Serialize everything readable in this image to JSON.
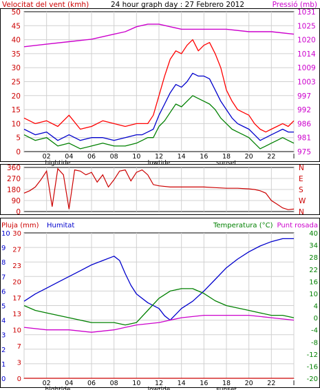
{
  "header": {
    "wind_label": "Velocitat del vent (kmh)",
    "title": "24 hour graph day : 27 Febrero 2012",
    "pressure_label": "Pressió (mb)"
  },
  "lower_header": {
    "rain_label": "Pluja (mm)",
    "humidity_label": "Humitat",
    "temperature_label": "Temperatura (°C)",
    "dewpoint_label": "Punt rosada"
  },
  "colors": {
    "wind_gust": "#ff0000",
    "wind_avg": "#0000cc",
    "wind_min": "#008000",
    "pressure": "#cc00cc",
    "direction": "#cc0000",
    "humidity": "#0000cc",
    "temperature": "#008000",
    "dewpoint": "#cc00cc",
    "rain": "#cc0000",
    "grid": "#d0d0d0",
    "plot_bg": "#ffffff",
    "frame": "#000000"
  },
  "chart_data": [
    {
      "type": "line",
      "panel": "wind-pressure",
      "x_ticks": [
        "02",
        "04",
        "06",
        "08",
        "10",
        "12",
        "14",
        "16",
        "18",
        "20",
        "22",
        "I"
      ],
      "x_marker_labels": [
        {
          "at": 3,
          "text": "hightide"
        },
        {
          "at": 12,
          "text": "lowtide"
        },
        {
          "at": 18,
          "text": "sunset"
        }
      ],
      "y_left": {
        "label": "Velocitat del vent (kmh)",
        "ticks": [
          0,
          5,
          10,
          15,
          20,
          25,
          30,
          35,
          40,
          45,
          50
        ],
        "range": [
          0,
          50
        ]
      },
      "y_right": {
        "label": "Pressió (mb)",
        "ticks": [
          975,
          981,
          986,
          992,
          997,
          1003,
          1009,
          1014,
          1020,
          1025,
          1031
        ],
        "range": [
          975,
          1031
        ]
      },
      "x_range": [
        0,
        24
      ],
      "series": [
        {
          "key": "wind_gust",
          "axis": "left",
          "x": [
            0,
            1,
            2,
            3,
            4,
            5,
            6,
            7,
            8,
            9,
            10,
            10.5,
            11,
            11.5,
            12,
            12.5,
            13,
            13.5,
            14,
            14.5,
            15,
            15.5,
            16,
            16.5,
            17,
            17.5,
            18,
            18.5,
            19,
            19.5,
            20,
            20.5,
            21,
            21.5,
            22,
            22.5,
            23,
            23.5,
            24
          ],
          "y": [
            12,
            10,
            11,
            9,
            13,
            8,
            9,
            11,
            10,
            9,
            10,
            10,
            10,
            13,
            20,
            27,
            33,
            36,
            35,
            38,
            40,
            36,
            38,
            39,
            35,
            30,
            22,
            18,
            15,
            14,
            13,
            10,
            8,
            7,
            8,
            9,
            10,
            9,
            11
          ]
        },
        {
          "key": "wind_avg",
          "axis": "left",
          "x": [
            0,
            1,
            2,
            3,
            4,
            5,
            6,
            7,
            8,
            9,
            10,
            10.5,
            11,
            11.5,
            12,
            12.5,
            13,
            13.5,
            14,
            14.5,
            15,
            15.5,
            16,
            16.5,
            17,
            17.5,
            18,
            18.5,
            19,
            19.5,
            20,
            20.5,
            21,
            21.5,
            22,
            22.5,
            23,
            23.5,
            24
          ],
          "y": [
            8,
            6,
            7,
            4,
            6,
            4,
            5,
            5,
            4,
            5,
            6,
            6,
            7,
            8,
            13,
            17,
            21,
            24,
            23,
            25,
            28,
            27,
            27,
            26,
            22,
            18,
            15,
            12,
            10,
            9,
            8,
            6,
            4,
            5,
            6,
            7,
            8,
            7,
            7
          ]
        },
        {
          "key": "wind_min",
          "axis": "left",
          "x": [
            0,
            1,
            2,
            3,
            4,
            5,
            6,
            7,
            8,
            9,
            10,
            10.5,
            11,
            11.5,
            12,
            12.5,
            13,
            13.5,
            14,
            14.5,
            15,
            15.5,
            16,
            16.5,
            17,
            17.5,
            18,
            18.5,
            19,
            19.5,
            20,
            20.5,
            21,
            21.5,
            22,
            22.5,
            23,
            23.5,
            24
          ],
          "y": [
            6,
            4,
            5,
            2,
            3,
            1,
            2,
            3,
            2,
            2,
            3,
            4,
            5,
            5,
            9,
            11,
            14,
            17,
            16,
            18,
            20,
            19,
            18,
            17,
            15,
            12,
            10,
            8,
            7,
            6,
            5,
            3,
            1,
            2,
            3,
            4,
            5,
            4,
            3
          ]
        },
        {
          "key": "pressure",
          "axis": "right",
          "x": [
            0,
            2,
            4,
            6,
            8,
            9,
            10,
            11,
            12,
            13,
            14,
            15,
            16,
            17,
            18,
            20,
            22,
            24
          ],
          "y": [
            1017,
            1018,
            1019,
            1020,
            1022,
            1023,
            1025,
            1026,
            1026,
            1025,
            1024,
            1024,
            1024,
            1024,
            1024,
            1023,
            1023,
            1022
          ]
        }
      ]
    },
    {
      "type": "line",
      "panel": "wind-direction",
      "y_left": {
        "ticks": [
          0,
          90,
          180,
          270,
          360
        ],
        "range": [
          0,
          360
        ]
      },
      "y_right": {
        "ticks": [
          "N",
          "W",
          "S",
          "E",
          "N"
        ]
      },
      "x_range": [
        0,
        24
      ],
      "series": [
        {
          "key": "direction",
          "x": [
            0,
            0.5,
            1,
            1.5,
            2,
            2.5,
            3,
            3.5,
            4,
            4.5,
            5,
            5.5,
            6,
            6.5,
            7,
            7.5,
            8,
            8.5,
            9,
            9.5,
            10,
            10.5,
            11,
            11.5,
            12,
            13,
            14,
            15,
            16,
            17,
            18,
            19,
            20,
            20.5,
            21,
            21.5,
            22,
            22.5,
            23,
            23.5,
            24
          ],
          "y": [
            150,
            170,
            200,
            260,
            330,
            40,
            350,
            300,
            20,
            340,
            330,
            300,
            320,
            240,
            300,
            200,
            260,
            330,
            340,
            250,
            320,
            340,
            300,
            220,
            210,
            200,
            200,
            200,
            200,
            195,
            190,
            190,
            185,
            180,
            170,
            150,
            90,
            60,
            30,
            15,
            20
          ]
        }
      ]
    },
    {
      "type": "line",
      "panel": "humidity-temperature",
      "y_left_outer": {
        "label": "Pluja (mm)",
        "ticks": [
          0,
          1,
          2,
          3,
          4,
          5,
          6,
          7,
          8,
          9,
          10
        ],
        "range": [
          0,
          10
        ]
      },
      "y_left_inner": {
        "label": "Humitat",
        "ticks": [
          0,
          3,
          7,
          10,
          13,
          17,
          20,
          23,
          27,
          30
        ],
        "range": [
          0,
          30
        ]
      },
      "y_right": {
        "label": "Temperatura (°C)",
        "ticks": [
          -20,
          -16,
          -12,
          -8,
          -4,
          0,
          4,
          10,
          16,
          22,
          28,
          34,
          40
        ],
        "range": [
          -20,
          40
        ]
      },
      "x_range": [
        0,
        24
      ],
      "series": [
        {
          "key": "rain",
          "axis": "left_outer",
          "x": [
            0,
            24
          ],
          "y": [
            0,
            0
          ]
        },
        {
          "key": "humidity",
          "axis": "left_outer",
          "x": [
            0,
            1,
            2,
            3,
            4,
            5,
            6,
            7,
            8,
            8.5,
            9,
            9.5,
            10,
            11,
            12,
            12.5,
            13,
            13.5,
            14,
            15,
            16,
            17,
            18,
            19,
            20,
            21,
            22,
            23,
            24
          ],
          "y": [
            5.3,
            5.8,
            6.2,
            6.6,
            7.0,
            7.4,
            7.8,
            8.1,
            8.4,
            8.1,
            7.2,
            6.4,
            5.8,
            5.2,
            4.8,
            4.3,
            4.0,
            4.4,
            4.8,
            5.3,
            6.0,
            6.8,
            7.6,
            8.2,
            8.7,
            9.1,
            9.4,
            9.6,
            9.6
          ]
        },
        {
          "key": "temperature",
          "axis": "right",
          "x": [
            0,
            1,
            2,
            3,
            4,
            5,
            6,
            7,
            8,
            9,
            10,
            11,
            12,
            13,
            14,
            15,
            16,
            17,
            18,
            19,
            20,
            21,
            22,
            23,
            24
          ],
          "y": [
            10,
            8,
            7,
            6,
            5,
            4,
            3,
            3,
            3,
            2,
            3,
            8,
            13,
            16,
            17,
            17,
            15,
            12,
            10,
            9,
            8,
            7,
            6,
            6,
            5
          ]
        },
        {
          "key": "dewpoint",
          "axis": "right",
          "x": [
            0,
            2,
            4,
            6,
            8,
            9,
            10,
            12,
            14,
            16,
            18,
            20,
            22,
            24
          ],
          "y": [
            1,
            0,
            0,
            -1,
            0,
            1,
            2,
            3,
            5,
            6,
            6,
            6,
            5,
            4
          ]
        }
      ]
    }
  ]
}
